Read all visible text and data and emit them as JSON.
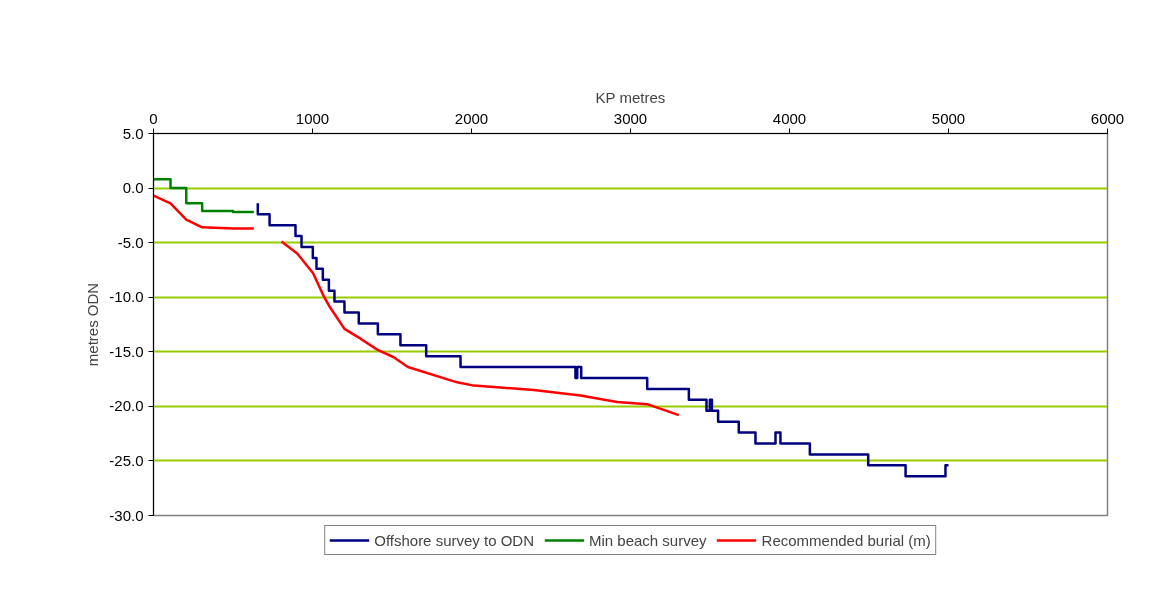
{
  "chart_data": {
    "type": "line",
    "xlabel": "KP metres",
    "ylabel": "metres ODN",
    "xlim": [
      0,
      6000
    ],
    "xticks": [
      0,
      1000,
      2000,
      3000,
      4000,
      5000,
      6000
    ],
    "ylim": [
      -30,
      5
    ],
    "yticks": [
      {
        "value": 5,
        "label": "5.0"
      },
      {
        "value": 0,
        "label": "0.0"
      },
      {
        "value": -5,
        "label": "-5.0"
      },
      {
        "value": -10,
        "label": "-10.0"
      },
      {
        "value": -15,
        "label": "-15.0"
      },
      {
        "value": -20,
        "label": "-20.0"
      },
      {
        "value": -25,
        "label": "-25.0"
      },
      {
        "value": -30,
        "label": "-30.0"
      }
    ],
    "grid": "y",
    "legend": "bottom",
    "marker": "none",
    "line_style": "solid",
    "series": [
      {
        "name": "Offshore survey to ODN",
        "color": "#000080",
        "x": [
          656,
          656,
          730,
          730,
          893,
          893,
          931,
          931,
          1002,
          1002,
          1025,
          1025,
          1065,
          1065,
          1103,
          1103,
          1138,
          1138,
          1201,
          1201,
          1291,
          1291,
          1411,
          1411,
          1553,
          1553,
          1715,
          1715,
          1931,
          1931,
          2654,
          2654,
          2665,
          2665,
          2690,
          2690,
          3105,
          3105,
          3367,
          3367,
          3478,
          3478,
          3499,
          3499,
          3512,
          3512,
          3551,
          3551,
          3681,
          3681,
          3786,
          3786,
          3912,
          3912,
          3943,
          3943,
          4128,
          4128,
          4495,
          4495,
          4730,
          4730,
          4981,
          4981,
          5000
        ],
        "values": [
          -1.4,
          -2.4,
          -2.4,
          -3.4,
          -3.4,
          -4.4,
          -4.4,
          -5.4,
          -5.4,
          -6.4,
          -6.4,
          -7.4,
          -7.4,
          -8.4,
          -8.4,
          -9.4,
          -9.4,
          -10.4,
          -10.4,
          -11.4,
          -11.4,
          -12.4,
          -12.4,
          -13.4,
          -13.4,
          -14.4,
          -14.4,
          -15.4,
          -15.4,
          -16.4,
          -16.4,
          -17.4,
          -17.4,
          -16.4,
          -16.4,
          -17.4,
          -17.4,
          -18.4,
          -18.4,
          -19.4,
          -19.4,
          -20.4,
          -20.4,
          -19.4,
          -19.4,
          -20.4,
          -20.4,
          -21.4,
          -21.4,
          -22.4,
          -22.4,
          -23.4,
          -23.4,
          -22.4,
          -22.4,
          -23.4,
          -23.4,
          -24.4,
          -24.4,
          -25.4,
          -25.4,
          -26.4,
          -26.4,
          -25.4,
          -25.4
        ]
      },
      {
        "name": "Min beach survey",
        "color": "#008000",
        "x": [
          0,
          107,
          107,
          206,
          206,
          306,
          306,
          500,
          500,
          631
        ],
        "values": [
          0.8,
          0.8,
          0.0,
          0.0,
          -1.4,
          -1.4,
          -2.1,
          -2.1,
          -2.2,
          -2.2
        ]
      },
      {
        "name": "Recommended burial (m)",
        "color": "#ff0000",
        "x": [
          0,
          107,
          206,
          306,
          505,
          631,
          700,
          805,
          904,
          1004,
          1067,
          1109,
          1201,
          1302,
          1407,
          1511,
          1600,
          1910,
          2015,
          2392,
          2686,
          2916,
          3105,
          3304
        ],
        "values": [
          -0.7,
          -1.4,
          -2.9,
          -3.6,
          -3.7,
          -3.7,
          null,
          -4.9,
          -6.0,
          -7.8,
          -9.8,
          -10.9,
          -12.9,
          -13.8,
          -14.8,
          -15.5,
          -16.4,
          -17.8,
          -18.1,
          -18.5,
          -19.0,
          -19.6,
          -19.8,
          -20.8
        ]
      }
    ]
  }
}
